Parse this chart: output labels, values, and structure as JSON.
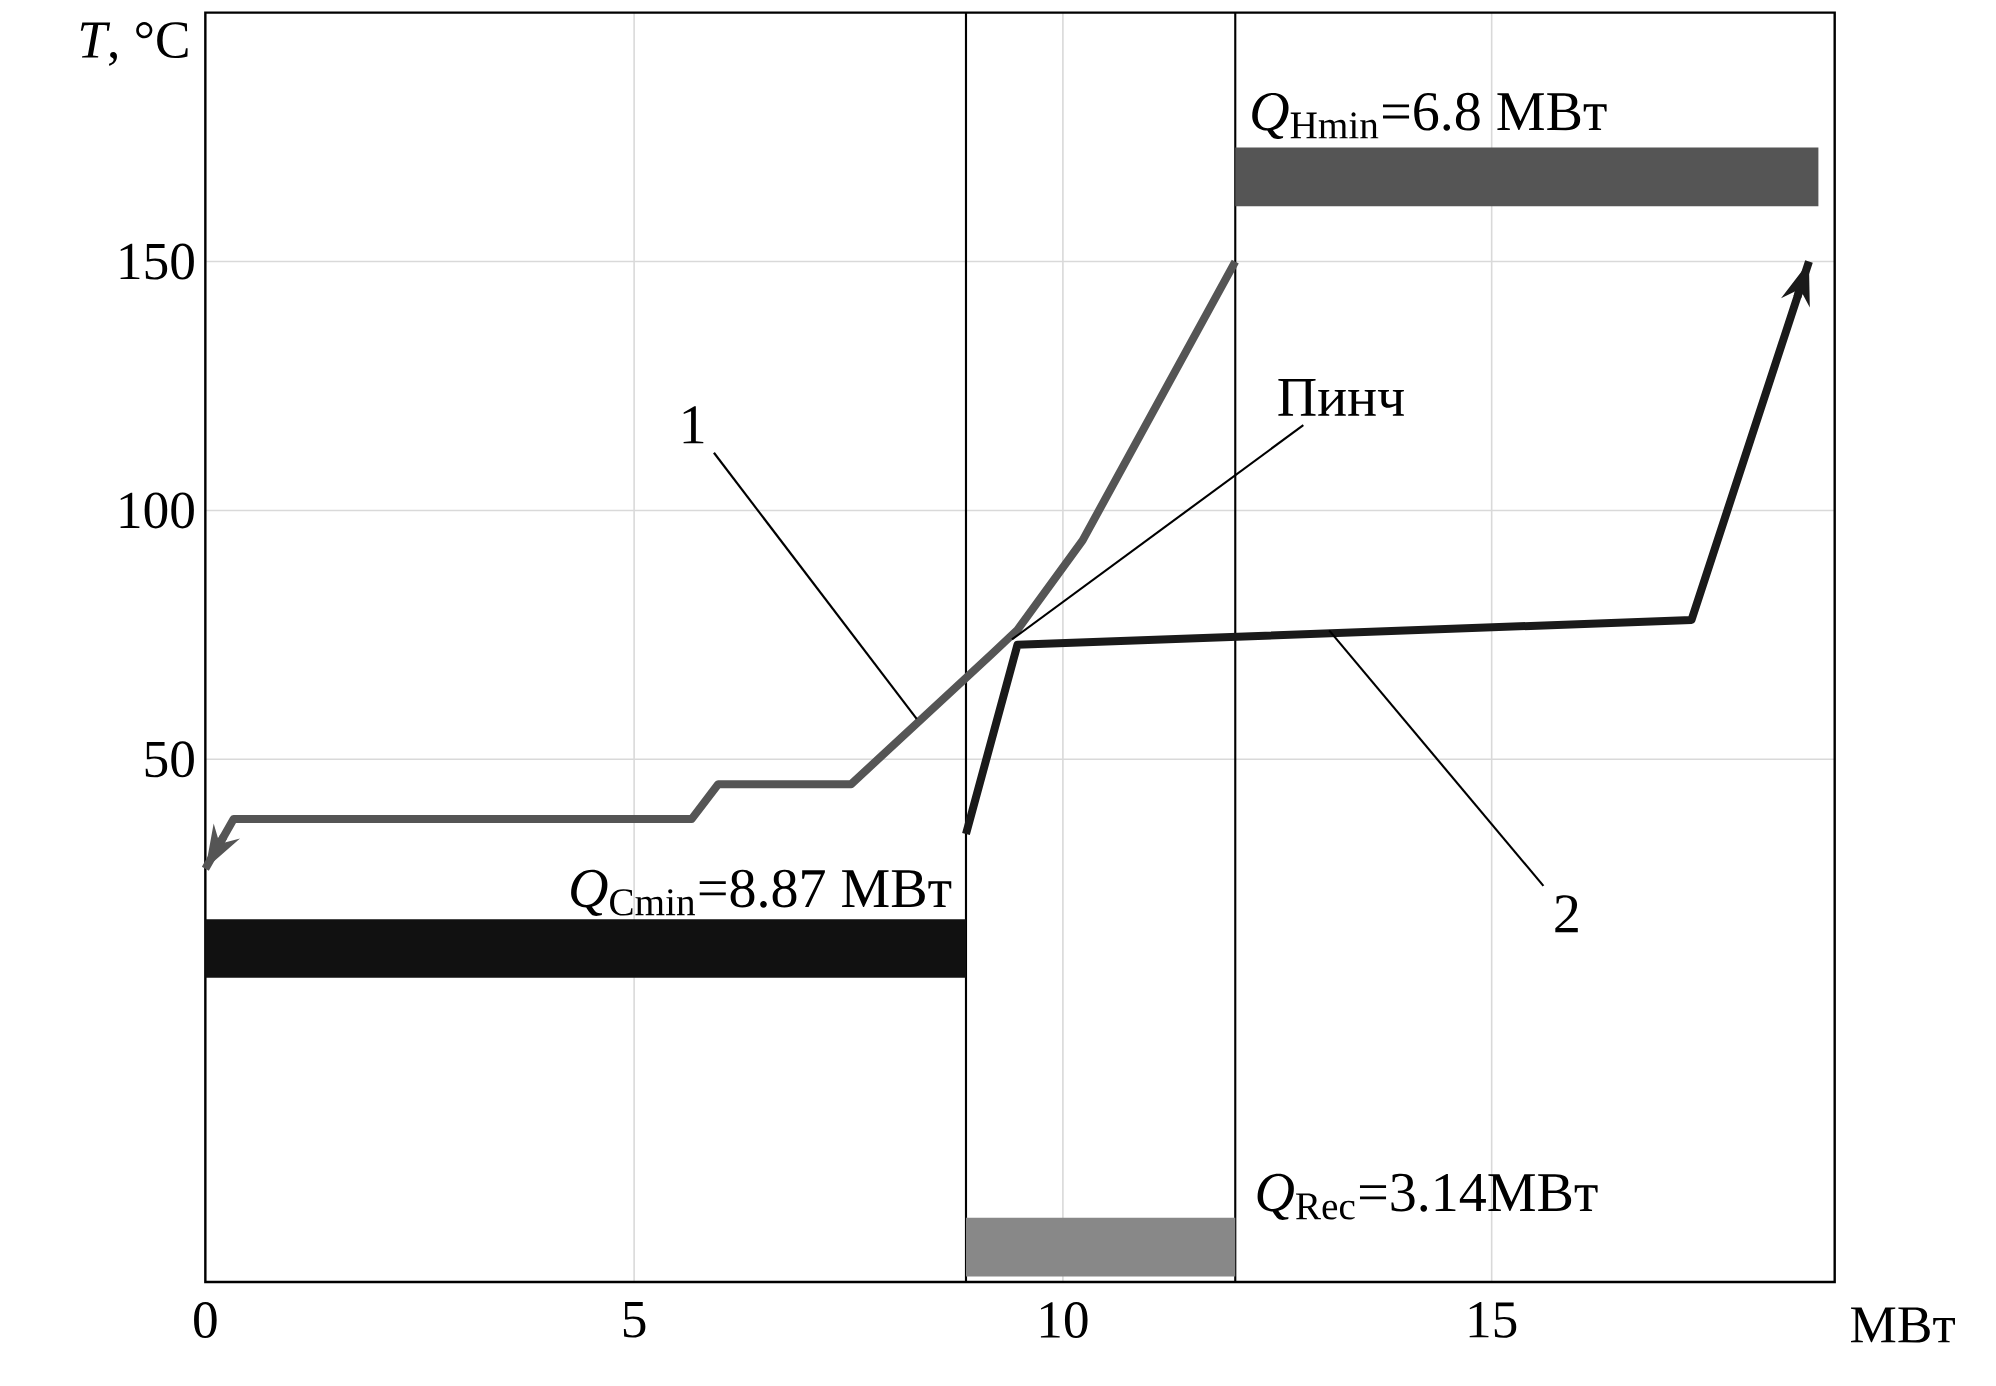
{
  "chart_data": {
    "type": "line",
    "xlabel": "МВт",
    "ylabel": "*T*, °C",
    "xlim": [
      0,
      19
    ],
    "ylim": [
      -55,
      200
    ],
    "xticks": [
      0,
      5,
      10,
      15
    ],
    "yticks": [
      50,
      100,
      150
    ],
    "grid": true,
    "series": [
      {
        "color": "#555555",
        "x": [
          12.01,
          10.23,
          9.47,
          9.16,
          7.53,
          5.98,
          5.67,
          0.33,
          0
        ],
        "values": [
          150,
          94,
          76,
          71,
          45,
          45,
          38,
          38,
          28
        ]
      },
      {
        "color": "#1a1a1a",
        "x": [
          8.87,
          9.47,
          17.33,
          18.7
        ],
        "values": [
          35,
          73,
          78,
          150
        ]
      },
      {
        "name": "*Q*$_{Cmin}$=8.87 МВт",
        "color": "#111111",
        "x": [
          0,
          8.87
        ],
        "values": [
          12,
          12
        ]
      },
      {
        "name": "*Q*$_{Hmin}$=6.8 МВт",
        "color": "#555555",
        "x": [
          12.01,
          18.81
        ],
        "values": [
          167,
          167
        ]
      },
      {
        "name": "*Q*$_{Rec}$=3.14МВт",
        "color": "#888888",
        "x": [
          8.87,
          12.01
        ],
        "values": [
          -48,
          -48
        ]
      }
    ],
    "ref_lines": [
      {
        "axis": "x",
        "value": 8.87,
        "color": "#000000"
      },
      {
        "axis": "x",
        "value": 12.01,
        "color": "#000000"
      }
    ],
    "annotations": [
      {
        "text": "1",
        "x": 8.3,
        "y": 58
      },
      {
        "text": "Пинч",
        "x": 9.4,
        "y": 74
      },
      {
        "text": "2",
        "x": 13.1,
        "y": 76
      }
    ]
  }
}
